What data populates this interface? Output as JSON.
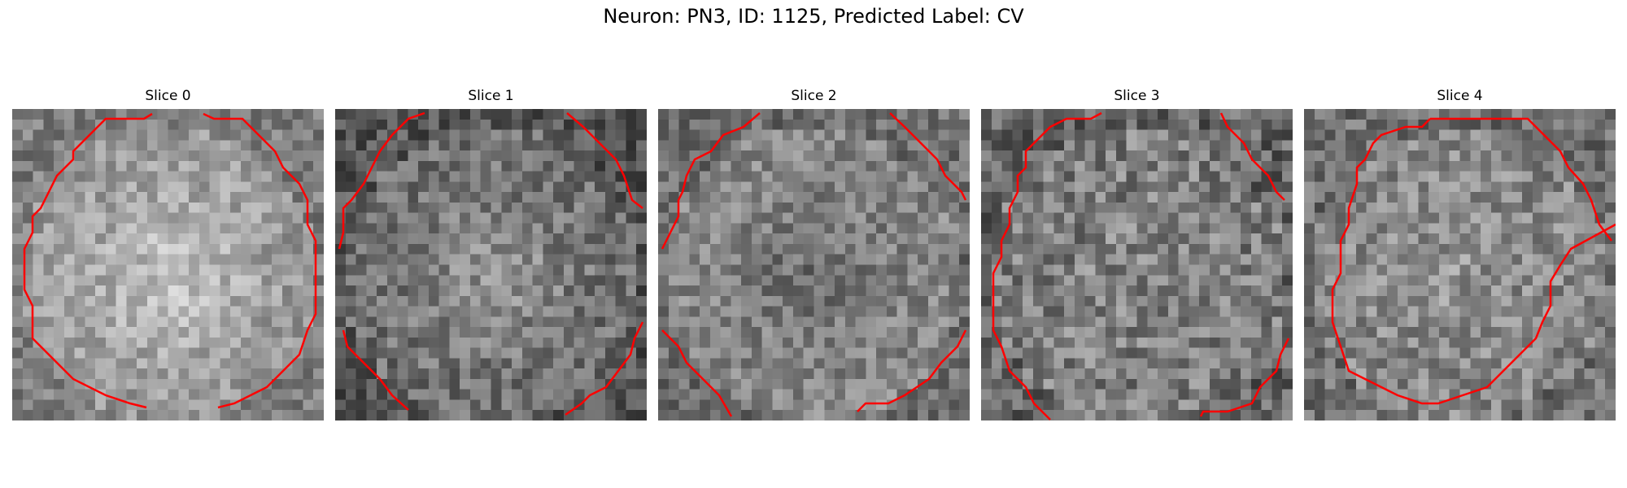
{
  "figure": {
    "title": "Neuron: PN3, ID: 1125, Predicted Label: CV",
    "contour_color": "#ff0000",
    "colormap": "gray"
  },
  "slices": [
    {
      "label": "Slice 0"
    },
    {
      "label": "Slice 1"
    },
    {
      "label": "Slice 2"
    },
    {
      "label": "Slice 3"
    },
    {
      "label": "Slice 4"
    }
  ]
}
